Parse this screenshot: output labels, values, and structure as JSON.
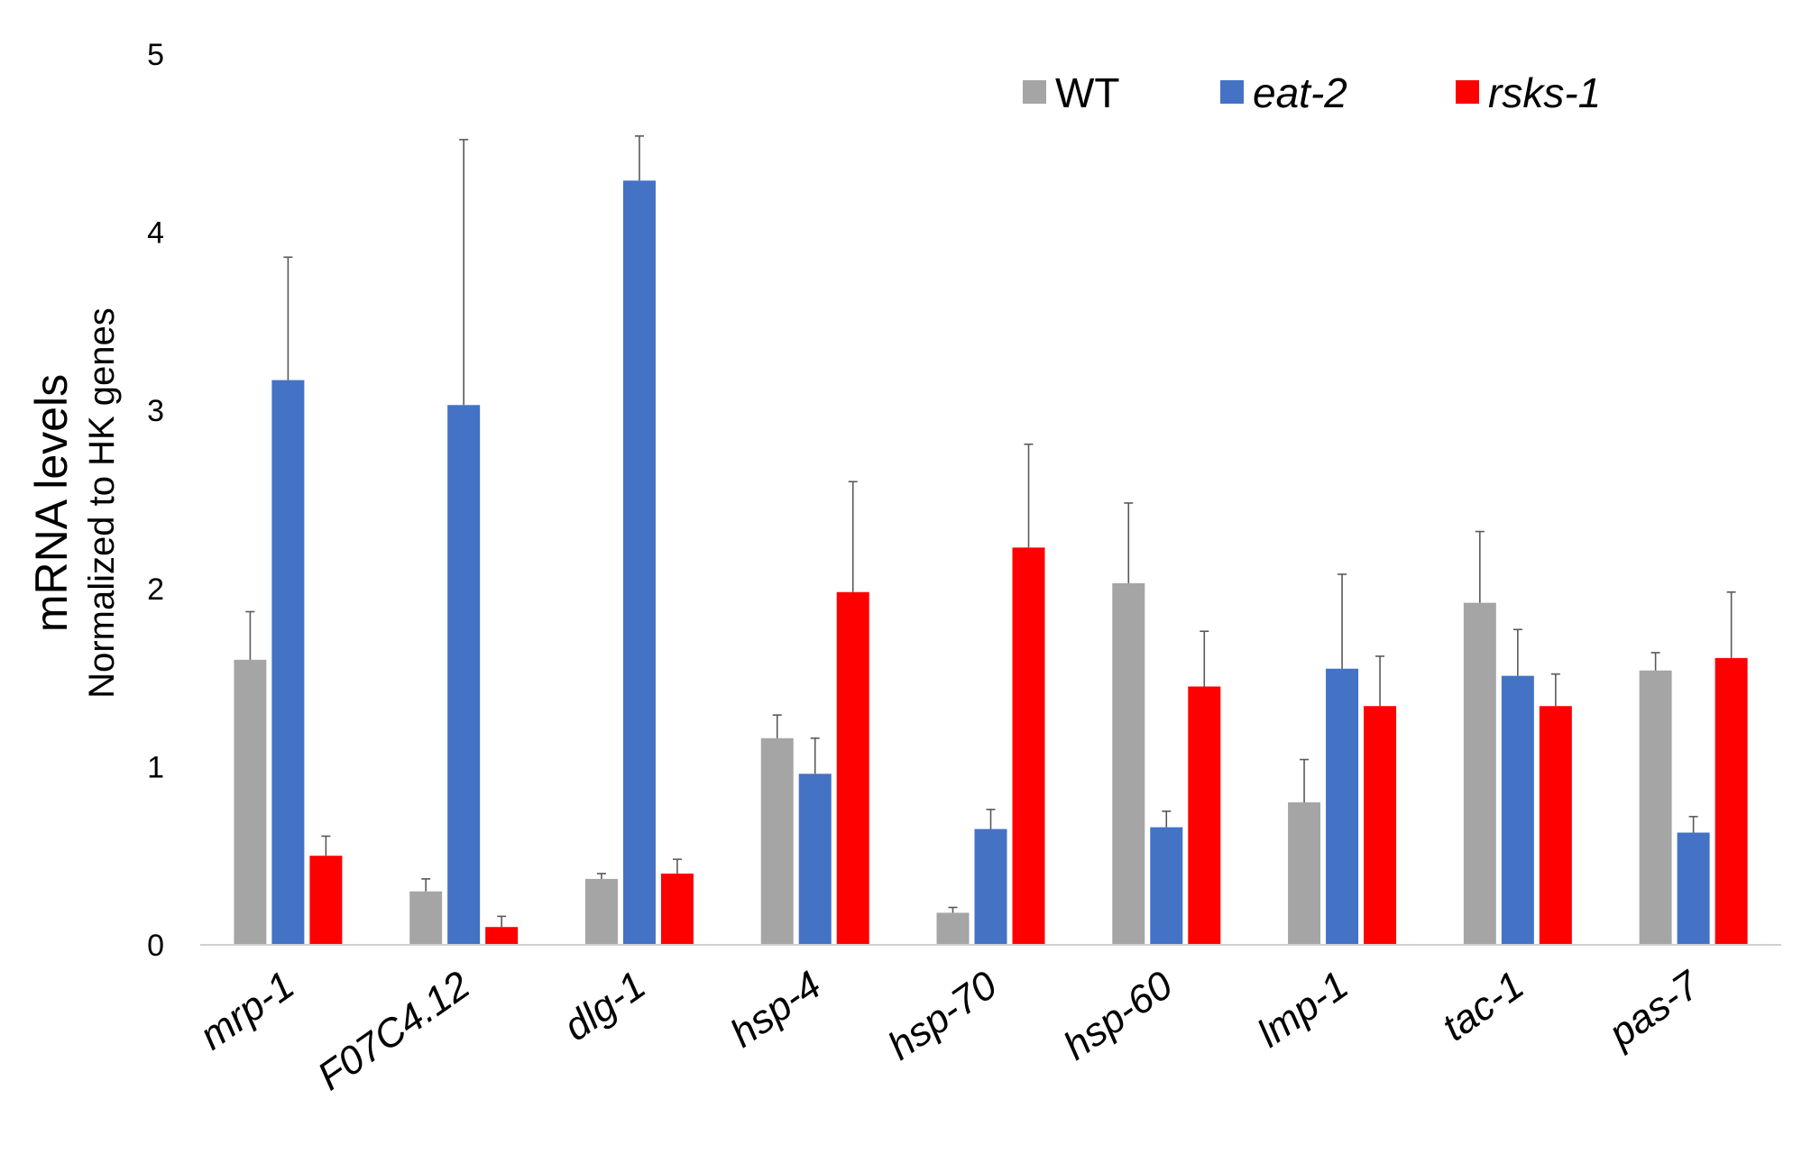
{
  "chart_data": {
    "type": "bar",
    "ylabel": "mRNA levels",
    "ylabel_sub": "Normalized to HK genes",
    "ylim": [
      0,
      5
    ],
    "yticks": [
      "0",
      "1",
      "2",
      "3",
      "4",
      "5"
    ],
    "grid": false,
    "legend_position": "top-right",
    "categories": [
      "mrp-1",
      "F07C4.12",
      "dlg-1",
      "hsp-4",
      "hsp-70",
      "hsp-60",
      "lmp-1",
      "tac-1",
      "pas-7"
    ],
    "series": [
      {
        "name": "WT",
        "italic": false,
        "color": "#a5a5a5",
        "values": [
          1.6,
          0.3,
          0.37,
          1.16,
          0.18,
          2.03,
          0.8,
          1.92,
          1.54
        ],
        "errors": [
          0.27,
          0.07,
          0.03,
          0.13,
          0.03,
          0.45,
          0.24,
          0.4,
          0.1
        ]
      },
      {
        "name": "eat-2",
        "italic": true,
        "color": "#4472c4",
        "values": [
          3.17,
          3.03,
          4.29,
          0.96,
          0.65,
          0.66,
          1.55,
          1.51,
          0.63
        ],
        "errors": [
          0.69,
          1.49,
          0.25,
          0.2,
          0.11,
          0.09,
          0.53,
          0.26,
          0.09
        ]
      },
      {
        "name": "rsks-1",
        "italic": true,
        "color": "#ff0000",
        "values": [
          0.5,
          0.1,
          0.4,
          1.98,
          2.23,
          1.45,
          1.34,
          1.34,
          1.61
        ],
        "errors": [
          0.11,
          0.06,
          0.08,
          0.62,
          0.58,
          0.31,
          0.28,
          0.18,
          0.37
        ]
      }
    ]
  }
}
